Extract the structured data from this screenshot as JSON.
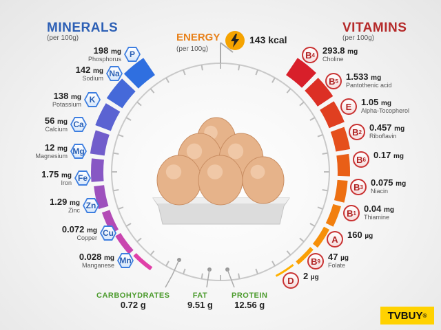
{
  "minerals": {
    "title": "MINERALS",
    "subtitle": "(per 100g)",
    "color": "#3d7ee0",
    "items": [
      {
        "symbol": "P",
        "amount": "198",
        "unit": "mg",
        "name": "Phosphorus"
      },
      {
        "symbol": "Na",
        "amount": "142",
        "unit": "mg",
        "name": "Sodium"
      },
      {
        "symbol": "K",
        "amount": "138",
        "unit": "mg",
        "name": "Potassium"
      },
      {
        "symbol": "Ca",
        "amount": "56",
        "unit": "mg",
        "name": "Calcium"
      },
      {
        "symbol": "Mg",
        "amount": "12",
        "unit": "mg",
        "name": "Magnesium"
      },
      {
        "symbol": "Fe",
        "amount": "1.75",
        "unit": "mg",
        "name": "Iron"
      },
      {
        "symbol": "Zn",
        "amount": "1.29",
        "unit": "mg",
        "name": "Zinc"
      },
      {
        "symbol": "Cu",
        "amount": "0.072",
        "unit": "mg",
        "name": "Copper"
      },
      {
        "symbol": "Mn",
        "amount": "0.028",
        "unit": "mg",
        "name": "Manganese"
      }
    ]
  },
  "vitamins": {
    "title": "VITAMINS",
    "subtitle": "(per 100g)",
    "color": "#c93232",
    "items": [
      {
        "letter": "B",
        "sub": "4",
        "amount": "293.8",
        "unit": "mg",
        "name": "Choline"
      },
      {
        "letter": "B",
        "sub": "5",
        "amount": "1.533",
        "unit": "mg",
        "name": "Pantothenic acid"
      },
      {
        "letter": "E",
        "sub": "",
        "amount": "1.05",
        "unit": "mg",
        "name": "Alpha-Tocopherol"
      },
      {
        "letter": "B",
        "sub": "2",
        "amount": "0.457",
        "unit": "mg",
        "name": "Riboflavin"
      },
      {
        "letter": "B",
        "sub": "6",
        "amount": "0.17",
        "unit": "mg",
        "name": ""
      },
      {
        "letter": "B",
        "sub": "3",
        "amount": "0.075",
        "unit": "mg",
        "name": "Niacin"
      },
      {
        "letter": "B",
        "sub": "1",
        "amount": "0.04",
        "unit": "mg",
        "name": "Thiamine"
      },
      {
        "letter": "A",
        "sub": "",
        "amount": "160",
        "unit": "µg",
        "name": ""
      },
      {
        "letter": "B",
        "sub": "9",
        "amount": "47",
        "unit": "µg",
        "name": "Folate"
      },
      {
        "letter": "D",
        "sub": "",
        "amount": "2",
        "unit": "µg",
        "name": ""
      }
    ]
  },
  "energy": {
    "title": "ENERGY",
    "subtitle": "(per 100g)",
    "value": "143 kcal",
    "icon": "lightning-icon",
    "color": "#f5a300"
  },
  "macros": [
    {
      "title": "CARBOHYDRATES",
      "value": "0.72 g"
    },
    {
      "title": "FAT",
      "value": "9.51 g"
    },
    {
      "title": "PROTEIN",
      "value": "12.56 g"
    }
  ],
  "logo": {
    "text": "TVBUY",
    "mark": "®"
  }
}
